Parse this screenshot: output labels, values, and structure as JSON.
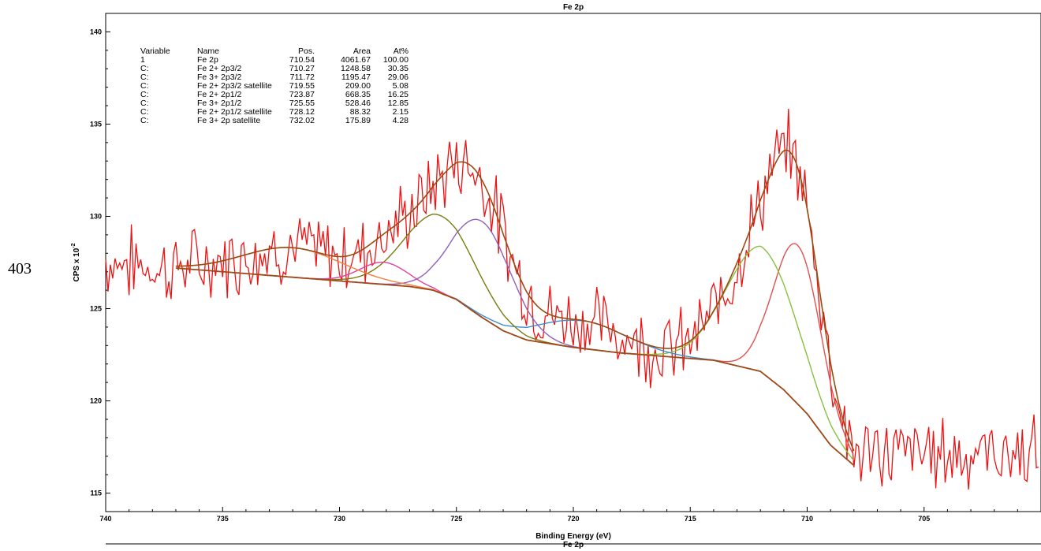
{
  "line_number": "403",
  "chart_data": {
    "type": "line",
    "title": "Fe 2p",
    "bottom_caption": "Fe 2p",
    "xlabel": "Binding Energy (eV)",
    "ylabel": "CPS x 10",
    "ylabel_exp": "-2",
    "xlim": [
      740,
      700
    ],
    "ylim": [
      114,
      141
    ],
    "x_ticks": [
      740,
      735,
      730,
      725,
      720,
      715,
      710,
      705
    ],
    "y_ticks": [
      115,
      120,
      125,
      130,
      135,
      140
    ],
    "grid": false,
    "legend_table": {
      "headers": [
        "Variable",
        "Name",
        "Pos.",
        "Area",
        "At%"
      ],
      "rows": [
        [
          "1",
          "Fe 2p",
          "710.54",
          "4061.67",
          "100.00"
        ],
        [
          "C:",
          "Fe 2+ 2p3/2",
          "710.27",
          "1248.58",
          "30.35"
        ],
        [
          "C:",
          "Fe 3+ 2p3/2",
          "711.72",
          "1195.47",
          "29.06"
        ],
        [
          "C:",
          "Fe 2+ 2p3/2 satellite",
          "719.55",
          "209.00",
          "5.08"
        ],
        [
          "C:",
          "Fe 2+ 2p1/2",
          "723.87",
          "668.35",
          "16.25"
        ],
        [
          "C:",
          "Fe 3+ 2p1/2",
          "725.55",
          "528.46",
          "12.85"
        ],
        [
          "C:",
          "Fe 2+ 2p1/2 satellite",
          "728.12",
          "88.32",
          "2.15"
        ],
        [
          "C:",
          "Fe 3+ 2p satellite",
          "732.02",
          "175.89",
          "4.28"
        ]
      ]
    },
    "background": {
      "x_range": [
        737,
        708
      ],
      "points": [
        [
          737,
          127.2
        ],
        [
          735,
          127.0
        ],
        [
          733,
          126.8
        ],
        [
          731,
          126.6
        ],
        [
          729,
          126.4
        ],
        [
          727,
          126.2
        ],
        [
          726,
          126.0
        ],
        [
          725,
          125.5
        ],
        [
          724,
          124.6
        ],
        [
          723,
          123.8
        ],
        [
          722,
          123.3
        ],
        [
          720,
          122.9
        ],
        [
          718,
          122.6
        ],
        [
          716,
          122.4
        ],
        [
          714,
          122.2
        ],
        [
          712,
          121.6
        ],
        [
          711,
          120.6
        ],
        [
          710,
          119.3
        ],
        [
          709,
          117.6
        ],
        [
          708,
          116.5
        ]
      ]
    },
    "components": [
      {
        "name": "Fe 2+ 2p3/2",
        "center": 710.4,
        "height": 8.6,
        "fwhm": 2.4,
        "color": "#e05050"
      },
      {
        "name": "Fe 3+ 2p3/2",
        "center": 711.9,
        "height": 6.8,
        "fwhm": 3.6,
        "color": "#88c040"
      },
      {
        "name": "Fe 2+ 2p3/2 satellite",
        "center": 719.6,
        "height": 1.5,
        "fwhm": 4.5,
        "color": "#3a8fd0"
      },
      {
        "name": "Fe 2+ 2p1/2",
        "center": 723.9,
        "height": 5.2,
        "fwhm": 3.0,
        "color": "#9060b8"
      },
      {
        "name": "Fe 3+ 2p1/2",
        "center": 725.7,
        "height": 4.2,
        "fwhm": 3.6,
        "color": "#7a7a10"
      },
      {
        "name": "Fe 2+ 2p1/2 satellite",
        "center": 728.1,
        "height": 1.2,
        "fwhm": 2.4,
        "color": "#e040a0"
      },
      {
        "name": "Fe 3+ 2p satellite",
        "center": 732.0,
        "height": 1.6,
        "fwhm": 5.0,
        "color": "#f08040"
      }
    ],
    "envelope_color": "#9a4a10",
    "background_color": "#a04818",
    "raw_color": "#ee1111",
    "raw_seed": 7,
    "raw_noise": 1.7
  }
}
